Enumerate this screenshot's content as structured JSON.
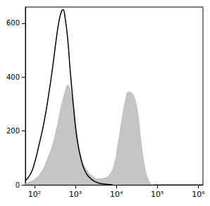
{
  "chart_data": {
    "type": "line",
    "log": "x",
    "xlim": [
      60,
      1300000
    ],
    "xticks": [
      {
        "value": 100,
        "label": "10²"
      },
      {
        "value": 1000,
        "label": "10³"
      },
      {
        "value": 10000,
        "label": "10⁴"
      },
      {
        "value": 100000,
        "label": "10⁵"
      },
      {
        "value": 1000000,
        "label": "10⁶"
      }
    ],
    "ylim": [
      0,
      660
    ],
    "yticks": [
      0,
      200,
      400,
      600
    ],
    "grid": false,
    "series": [
      {
        "color": "#bbbbbb",
        "type": "area",
        "x": [
          60,
          100,
          150,
          200,
          280,
          350,
          450,
          550,
          650,
          750,
          900,
          1100,
          1400,
          1800,
          2500,
          3500,
          5000,
          7000,
          9000,
          11000,
          14000,
          17000,
          20000,
          24000,
          28000,
          33000,
          40000,
          50000,
          60000,
          70000,
          80000
        ],
        "values": [
          5,
          20,
          50,
          90,
          150,
          210,
          290,
          340,
          370,
          350,
          280,
          180,
          100,
          60,
          35,
          22,
          25,
          40,
          80,
          150,
          250,
          320,
          345,
          340,
          320,
          270,
          160,
          60,
          20,
          3,
          0
        ]
      },
      {
        "color": "#000000",
        "type": "line",
        "x": [
          60,
          80,
          100,
          130,
          170,
          220,
          280,
          340,
          400,
          460,
          500,
          560,
          650,
          750,
          900,
          1100,
          1400,
          1800,
          2500,
          3500,
          5000,
          8000
        ],
        "values": [
          15,
          40,
          80,
          150,
          230,
          330,
          440,
          540,
          610,
          645,
          650,
          620,
          540,
          420,
          290,
          170,
          90,
          45,
          20,
          8,
          3,
          0
        ]
      }
    ]
  }
}
